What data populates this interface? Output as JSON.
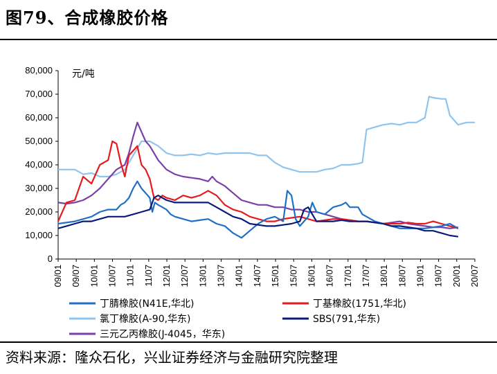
{
  "header": {
    "title": "图79、合成橡胶价格"
  },
  "footer": {
    "source": "资料来源：隆众石化，兴业证券经济与金融研究院整理"
  },
  "chart_data": {
    "type": "line",
    "ylabel": "元/吨",
    "ylim": [
      0,
      80000
    ],
    "y_ticks": [
      "0",
      "10,000",
      "20,000",
      "30,000",
      "40,000",
      "50,000",
      "60,000",
      "70,000",
      "80,000"
    ],
    "y_tick_values": [
      0,
      10000,
      20000,
      30000,
      40000,
      50000,
      60000,
      70000,
      80000
    ],
    "x_ticks": [
      "09/01",
      "09/07",
      "10/01",
      "10/07",
      "11/01",
      "11/07",
      "12/01",
      "12/07",
      "13/01",
      "13/07",
      "14/01",
      "14/07",
      "15/01",
      "15/07",
      "16/01",
      "16/07",
      "17/01",
      "17/07",
      "18/01",
      "18/07",
      "19/01",
      "19/07",
      "20/01",
      "20/07"
    ],
    "grid": false,
    "legend_position": "bottom",
    "series": [
      {
        "name": "丁腈橡胶(N41E,华北)",
        "color": "#1f6fc5",
        "points": [
          [
            0,
            15000
          ],
          [
            2,
            16000
          ],
          [
            4,
            18000
          ],
          [
            5,
            20000
          ],
          [
            6,
            21000
          ],
          [
            7,
            21000
          ],
          [
            7.5,
            23000
          ],
          [
            8,
            24000
          ],
          [
            8.5,
            26000
          ],
          [
            9,
            30000
          ],
          [
            9.5,
            33000
          ],
          [
            10,
            30000
          ],
          [
            10.5,
            28000
          ],
          [
            11,
            26000
          ],
          [
            11.3,
            20000
          ],
          [
            11.6,
            24000
          ],
          [
            12,
            23000
          ],
          [
            12.5,
            22000
          ],
          [
            13,
            21000
          ],
          [
            13.5,
            19000
          ],
          [
            14,
            18000
          ],
          [
            15,
            17000
          ],
          [
            16,
            16000
          ],
          [
            17,
            16500
          ],
          [
            18,
            17000
          ],
          [
            19,
            15000
          ],
          [
            20,
            14000
          ],
          [
            21,
            11000
          ],
          [
            22,
            9000
          ],
          [
            23,
            12000
          ],
          [
            24,
            15000
          ],
          [
            25,
            17000
          ],
          [
            26,
            18000
          ],
          [
            26.5,
            17000
          ],
          [
            27,
            16000
          ],
          [
            27.5,
            29000
          ],
          [
            28,
            27000
          ],
          [
            28.5,
            17000
          ],
          [
            29,
            14000
          ],
          [
            29.5,
            16000
          ],
          [
            30,
            18000
          ],
          [
            30.5,
            24000
          ],
          [
            31,
            20000
          ],
          [
            32,
            19000
          ],
          [
            33,
            22000
          ],
          [
            34,
            23000
          ],
          [
            34.5,
            24000
          ],
          [
            35,
            22000
          ],
          [
            36,
            22000
          ],
          [
            36.5,
            19000
          ],
          [
            37,
            18000
          ],
          [
            38,
            16000
          ],
          [
            39,
            15000
          ],
          [
            40,
            14000
          ],
          [
            41,
            13000
          ],
          [
            42,
            13000
          ],
          [
            43,
            13000
          ],
          [
            44,
            13000
          ],
          [
            45,
            13500
          ],
          [
            46,
            14000
          ],
          [
            47,
            15000
          ],
          [
            48,
            13000
          ]
        ]
      },
      {
        "name": "丁基橡胶(1751,华北)",
        "color": "#e8191c",
        "points": [
          [
            0,
            16000
          ],
          [
            1,
            24000
          ],
          [
            2,
            25000
          ],
          [
            3,
            35000
          ],
          [
            4,
            32000
          ],
          [
            5,
            40000
          ],
          [
            6,
            42000
          ],
          [
            6.5,
            50000
          ],
          [
            7,
            49000
          ],
          [
            7.5,
            41000
          ],
          [
            8,
            35000
          ],
          [
            8.5,
            44000
          ],
          [
            9,
            46000
          ],
          [
            9.5,
            48000
          ],
          [
            10,
            40000
          ],
          [
            10.5,
            38000
          ],
          [
            11,
            34000
          ],
          [
            11.5,
            26000
          ],
          [
            12,
            25000
          ],
          [
            12.5,
            27000
          ],
          [
            13,
            26000
          ],
          [
            14,
            25000
          ],
          [
            15,
            27000
          ],
          [
            16,
            26000
          ],
          [
            17,
            27000
          ],
          [
            18,
            29000
          ],
          [
            19,
            27000
          ],
          [
            20,
            23000
          ],
          [
            21,
            21000
          ],
          [
            22,
            20000
          ],
          [
            23,
            18000
          ],
          [
            24,
            17000
          ],
          [
            25,
            16000
          ],
          [
            26,
            16000
          ],
          [
            27,
            17000
          ],
          [
            28,
            17500
          ],
          [
            29,
            18000
          ],
          [
            30,
            17000
          ],
          [
            31,
            16000
          ],
          [
            32,
            16500
          ],
          [
            33,
            17000
          ],
          [
            34,
            17000
          ],
          [
            35,
            16500
          ],
          [
            36,
            16000
          ],
          [
            37,
            16000
          ],
          [
            38,
            15500
          ],
          [
            39,
            15000
          ],
          [
            40,
            15000
          ],
          [
            41,
            15000
          ],
          [
            42,
            15500
          ],
          [
            43,
            15000
          ],
          [
            44,
            15000
          ],
          [
            45,
            16000
          ],
          [
            46,
            15000
          ],
          [
            47,
            14000
          ],
          [
            48,
            13000
          ]
        ]
      },
      {
        "name": "氯丁橡胶(A-90,华东)",
        "color": "#8fc4ee",
        "points": [
          [
            0,
            38000
          ],
          [
            2,
            38000
          ],
          [
            3,
            36000
          ],
          [
            4,
            36500
          ],
          [
            5,
            35000
          ],
          [
            6,
            35000
          ],
          [
            7,
            36000
          ],
          [
            8,
            38000
          ],
          [
            9,
            44000
          ],
          [
            10,
            50000
          ],
          [
            11,
            50000
          ],
          [
            12,
            48000
          ],
          [
            13,
            45000
          ],
          [
            14,
            44000
          ],
          [
            15,
            44000
          ],
          [
            16,
            44500
          ],
          [
            17,
            44000
          ],
          [
            18,
            45000
          ],
          [
            19,
            44500
          ],
          [
            20,
            45000
          ],
          [
            21,
            45000
          ],
          [
            22,
            45000
          ],
          [
            23,
            45000
          ],
          [
            24,
            44000
          ],
          [
            25,
            44000
          ],
          [
            26,
            41000
          ],
          [
            27,
            39000
          ],
          [
            28,
            38000
          ],
          [
            29,
            37000
          ],
          [
            30,
            37000
          ],
          [
            31,
            37000
          ],
          [
            32,
            38000
          ],
          [
            33,
            38500
          ],
          [
            34,
            40000
          ],
          [
            35,
            40000
          ],
          [
            36,
            40500
          ],
          [
            36.5,
            41000
          ],
          [
            37,
            55000
          ],
          [
            38,
            56000
          ],
          [
            39,
            57000
          ],
          [
            40,
            57500
          ],
          [
            41,
            57000
          ],
          [
            42,
            58000
          ],
          [
            43,
            58000
          ],
          [
            44,
            60000
          ],
          [
            44.5,
            69000
          ],
          [
            45,
            68500
          ],
          [
            46,
            68000
          ],
          [
            46.5,
            68000
          ],
          [
            47,
            61000
          ],
          [
            48,
            57000
          ],
          [
            49,
            58000
          ],
          [
            50,
            58000
          ]
        ]
      },
      {
        "name": "SBS(791,华东)",
        "color": "#0a1a7a",
        "points": [
          [
            0,
            13000
          ],
          [
            1,
            14000
          ],
          [
            2,
            15000
          ],
          [
            3,
            16000
          ],
          [
            4,
            16000
          ],
          [
            5,
            17000
          ],
          [
            6,
            18000
          ],
          [
            7,
            18000
          ],
          [
            8,
            18000
          ],
          [
            9,
            19000
          ],
          [
            10,
            20000
          ],
          [
            11,
            21000
          ],
          [
            11.5,
            26000
          ],
          [
            12,
            27000
          ],
          [
            13,
            25000
          ],
          [
            14,
            24000
          ],
          [
            15,
            24000
          ],
          [
            16,
            24000
          ],
          [
            17,
            24000
          ],
          [
            18,
            24000
          ],
          [
            19,
            22000
          ],
          [
            20,
            20000
          ],
          [
            21,
            18000
          ],
          [
            22,
            17000
          ],
          [
            23,
            15000
          ],
          [
            24,
            14500
          ],
          [
            25,
            14000
          ],
          [
            26,
            14000
          ],
          [
            27,
            14500
          ],
          [
            28,
            15000
          ],
          [
            29,
            16000
          ],
          [
            29.5,
            21000
          ],
          [
            30,
            22000
          ],
          [
            30.5,
            19000
          ],
          [
            31,
            16000
          ],
          [
            32,
            16000
          ],
          [
            33,
            16000
          ],
          [
            34,
            16500
          ],
          [
            35,
            16000
          ],
          [
            36,
            16000
          ],
          [
            37,
            16000
          ],
          [
            38,
            15500
          ],
          [
            39,
            15000
          ],
          [
            40,
            14000
          ],
          [
            41,
            14000
          ],
          [
            42,
            13500
          ],
          [
            43,
            13000
          ],
          [
            44,
            12000
          ],
          [
            45,
            12000
          ],
          [
            46,
            11000
          ],
          [
            47,
            10000
          ],
          [
            48,
            9500
          ]
        ]
      },
      {
        "name": "三元乙丙橡胶(J-4045，华东)",
        "color": "#7b3fa8",
        "points": [
          [
            0,
            24000
          ],
          [
            1,
            23500
          ],
          [
            2,
            24000
          ],
          [
            3,
            25000
          ],
          [
            4,
            27000
          ],
          [
            5,
            30000
          ],
          [
            6,
            34000
          ],
          [
            7,
            38000
          ],
          [
            8,
            40000
          ],
          [
            8.5,
            45000
          ],
          [
            9,
            52000
          ],
          [
            9.5,
            58000
          ],
          [
            10,
            54000
          ],
          [
            10.5,
            50000
          ],
          [
            11,
            48000
          ],
          [
            11.5,
            45000
          ],
          [
            12,
            42000
          ],
          [
            13,
            38000
          ],
          [
            14,
            36000
          ],
          [
            15,
            35000
          ],
          [
            16,
            34500
          ],
          [
            17,
            34000
          ],
          [
            18,
            33000
          ],
          [
            18.5,
            35000
          ],
          [
            19,
            33000
          ],
          [
            20,
            31000
          ],
          [
            21,
            28000
          ],
          [
            22,
            25000
          ],
          [
            23,
            24000
          ],
          [
            24,
            23000
          ],
          [
            25,
            23000
          ],
          [
            26,
            22000
          ],
          [
            27,
            22000
          ],
          [
            28,
            21000
          ],
          [
            29,
            21000
          ],
          [
            30,
            20000
          ],
          [
            31,
            20000
          ],
          [
            32,
            19000
          ],
          [
            33,
            18000
          ],
          [
            34,
            17000
          ],
          [
            35,
            16500
          ],
          [
            36,
            16000
          ],
          [
            37,
            16000
          ],
          [
            38,
            15500
          ],
          [
            39,
            15000
          ],
          [
            40,
            15500
          ],
          [
            41,
            16000
          ],
          [
            42,
            15000
          ],
          [
            43,
            14500
          ],
          [
            44,
            14000
          ],
          [
            45,
            13500
          ],
          [
            46,
            13500
          ],
          [
            47,
            13000
          ],
          [
            48,
            13500
          ]
        ]
      }
    ]
  }
}
